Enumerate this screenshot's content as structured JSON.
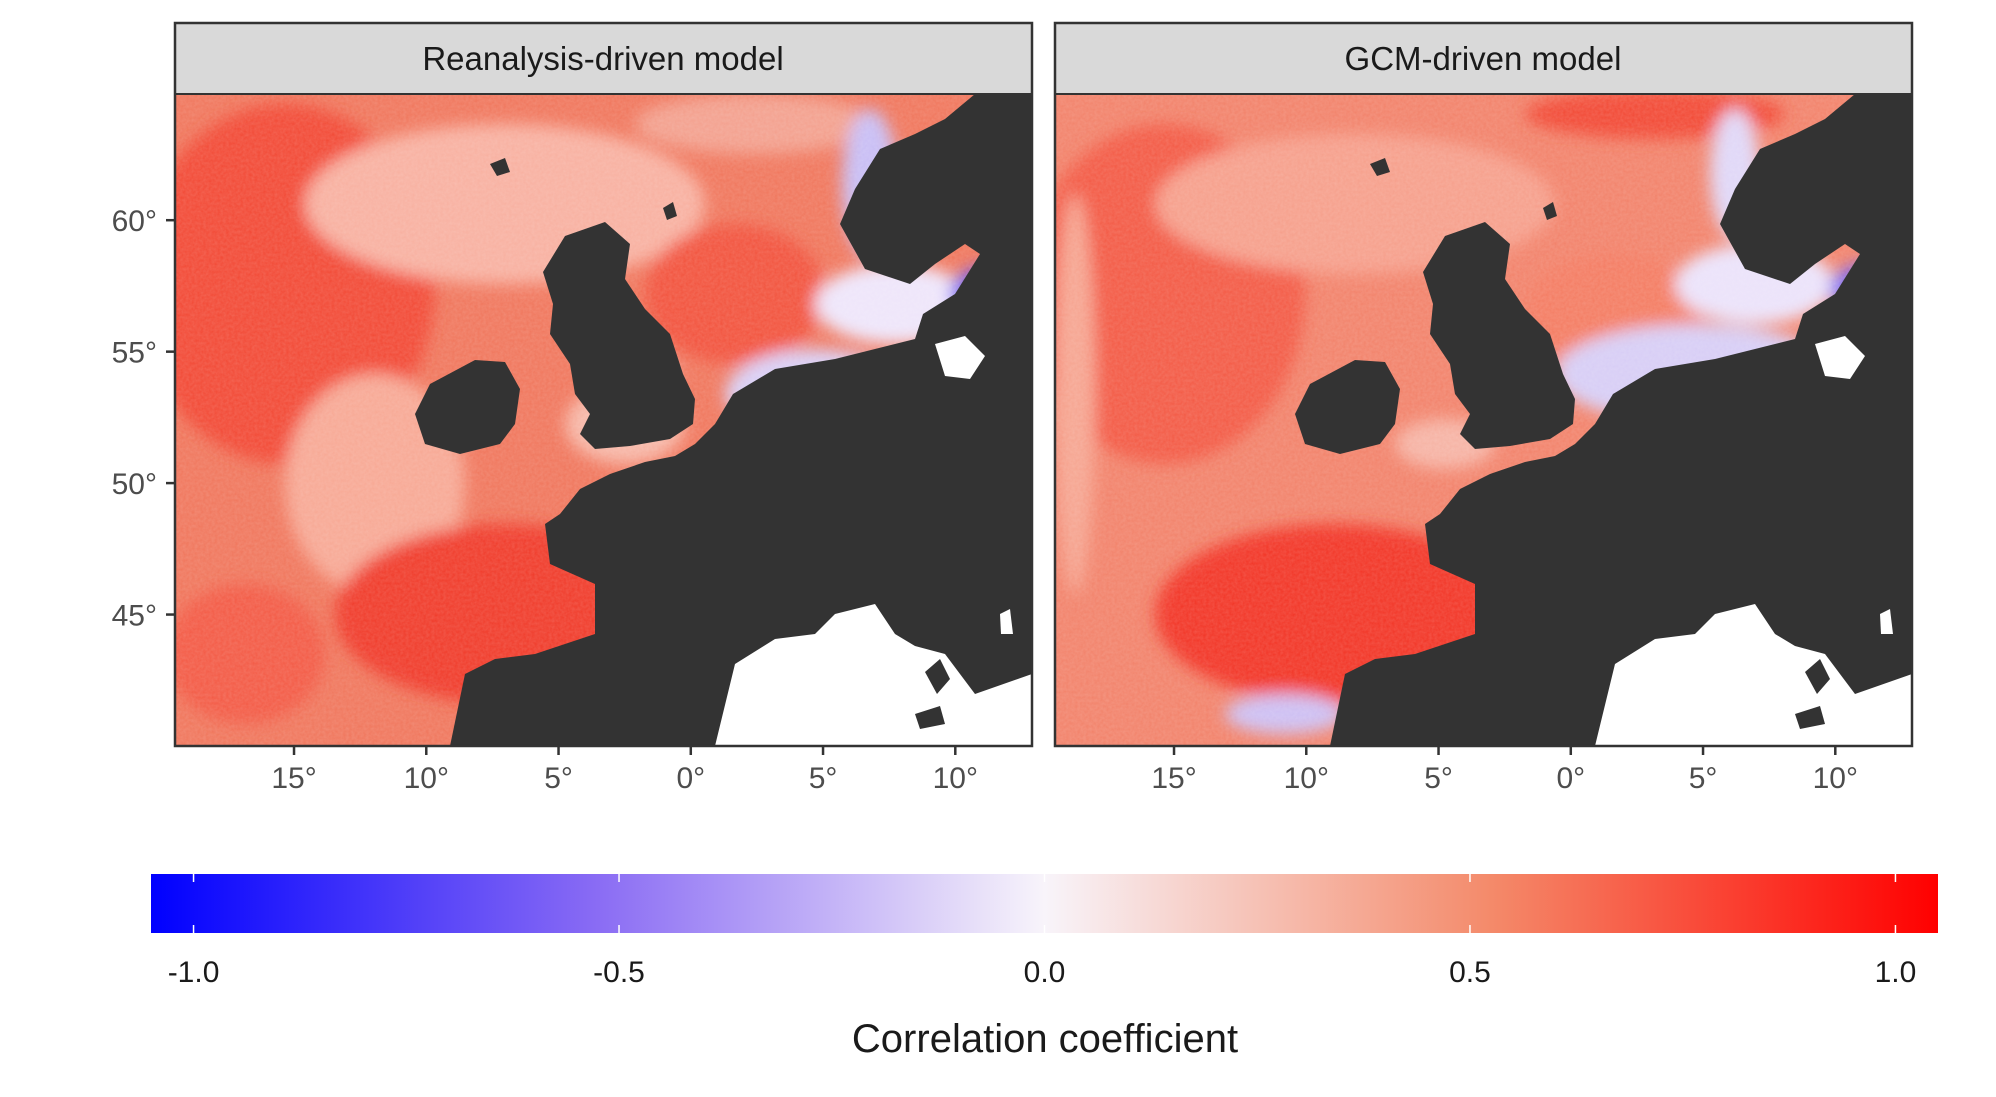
{
  "panels": [
    {
      "title": "Reanalysis-driven model"
    },
    {
      "title": "GCM-driven model"
    }
  ],
  "axes": {
    "x": {
      "range_deg": [
        -19.5,
        12.9
      ],
      "ticks": [
        {
          "value": -15,
          "label": "15°"
        },
        {
          "value": -10,
          "label": "10°"
        },
        {
          "value": -5,
          "label": "5°"
        },
        {
          "value": 0,
          "label": "0°"
        },
        {
          "value": 5,
          "label": "5°"
        },
        {
          "value": 10,
          "label": "10°"
        }
      ]
    },
    "y": {
      "range_deg": [
        40.0,
        64.8
      ],
      "ticks": [
        {
          "value": 45,
          "label": "45°"
        },
        {
          "value": 50,
          "label": "50°"
        },
        {
          "value": 55,
          "label": "55°"
        },
        {
          "value": 60,
          "label": "60°"
        }
      ]
    }
  },
  "legend": {
    "title": "Correlation coefficient",
    "range": [
      -1.05,
      1.05
    ],
    "ticks": [
      {
        "value": -1.0,
        "label": "-1.0"
      },
      {
        "value": -0.5,
        "label": "-0.5"
      },
      {
        "value": 0.0,
        "label": "0.0"
      },
      {
        "value": 0.5,
        "label": "0.5"
      },
      {
        "value": 1.0,
        "label": "1.0"
      }
    ],
    "colors": {
      "low": "#0000ff",
      "mid": "#f8f4fa",
      "high": "#ff0000"
    }
  },
  "colors": {
    "land": "#333333",
    "strip": "#d9d9d9",
    "frame": "#333333",
    "missing_land": "#ffffff"
  }
}
